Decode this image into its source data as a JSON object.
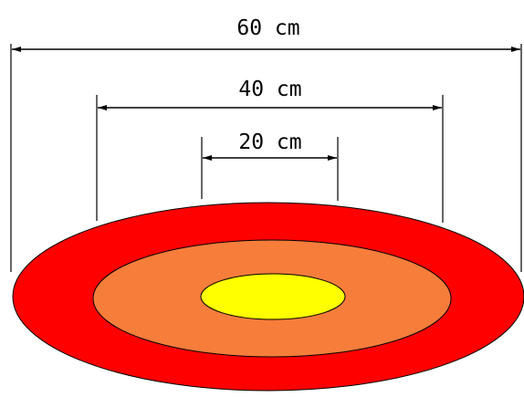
{
  "dimensions": {
    "outer": {
      "label": "60 cm"
    },
    "middle": {
      "label": "40 cm"
    },
    "inner": {
      "label": "20 cm"
    }
  },
  "colors": {
    "outer_ring": "#ff0000",
    "middle_ring": "#f77d3b",
    "center": "#ffff00",
    "lines": "#000000"
  }
}
